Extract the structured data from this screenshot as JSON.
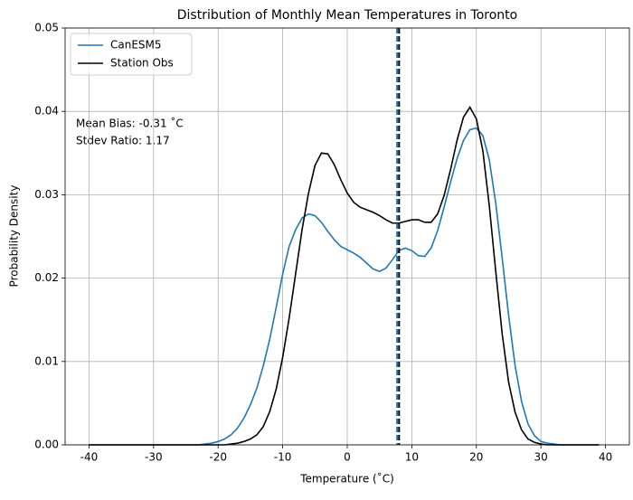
{
  "chart_data": {
    "type": "line",
    "title": "Distribution of Monthly Mean Temperatures in Toronto",
    "xlabel": "Temperature (˚C)",
    "ylabel": "Probability Density",
    "annotations": [
      "Mean Bias: -0.31 ˚C",
      "Stdev Ratio: 1.17"
    ],
    "x": [
      -40,
      -39,
      -38,
      -37,
      -36,
      -35,
      -34,
      -33,
      -32,
      -31,
      -30,
      -29,
      -28,
      -27,
      -26,
      -25,
      -24,
      -23,
      -22,
      -21,
      -20,
      -19,
      -18,
      -17,
      -16,
      -15,
      -14,
      -13,
      -12,
      -11,
      -10,
      -9,
      -8,
      -7,
      -6,
      -5,
      -4,
      -3,
      -2,
      -1,
      0,
      1,
      2,
      3,
      4,
      5,
      6,
      7,
      8,
      9,
      10,
      11,
      12,
      13,
      14,
      15,
      16,
      17,
      18,
      19,
      20,
      21,
      22,
      23,
      24,
      25,
      26,
      27,
      28,
      29,
      30,
      31,
      32,
      33,
      34,
      35,
      36,
      37,
      38,
      39
    ],
    "series": [
      {
        "name": "CanESM5",
        "color": "#1f77b4",
        "values": [
          0,
          0,
          0,
          0,
          0,
          0,
          0,
          0,
          0,
          0,
          0,
          0,
          0,
          0,
          0,
          0,
          0,
          0,
          0.0001,
          0.0002,
          0.0004,
          0.0007,
          0.0012,
          0.002,
          0.0032,
          0.0048,
          0.0068,
          0.0095,
          0.0127,
          0.0165,
          0.0205,
          0.0238,
          0.0258,
          0.0272,
          0.0277,
          0.0275,
          0.0267,
          0.0256,
          0.0246,
          0.0238,
          0.0234,
          0.023,
          0.0225,
          0.0218,
          0.0211,
          0.0208,
          0.0212,
          0.0222,
          0.0233,
          0.0236,
          0.0233,
          0.0227,
          0.0226,
          0.0236,
          0.0257,
          0.0285,
          0.0315,
          0.0343,
          0.0365,
          0.0378,
          0.038,
          0.0371,
          0.0342,
          0.029,
          0.0224,
          0.0155,
          0.0095,
          0.0052,
          0.0025,
          0.0011,
          0.0004,
          0.0002,
          0.0001,
          0,
          0,
          0,
          0,
          0,
          0,
          0
        ]
      },
      {
        "name": "Station Obs",
        "color": "#000000",
        "values": [
          0,
          0,
          0,
          0,
          0,
          0,
          0,
          0,
          0,
          0,
          0,
          0,
          0,
          0,
          0,
          0,
          0,
          0,
          0,
          0,
          0,
          0,
          0.0001,
          0.0002,
          0.0004,
          0.0007,
          0.0012,
          0.0022,
          0.004,
          0.0067,
          0.0105,
          0.0152,
          0.0205,
          0.0258,
          0.0302,
          0.0335,
          0.035,
          0.0349,
          0.0336,
          0.0318,
          0.0302,
          0.0291,
          0.0285,
          0.0282,
          0.0279,
          0.0275,
          0.027,
          0.0266,
          0.0266,
          0.0268,
          0.027,
          0.027,
          0.0267,
          0.0267,
          0.0277,
          0.0299,
          0.033,
          0.0365,
          0.0393,
          0.0405,
          0.0391,
          0.0353,
          0.0287,
          0.0208,
          0.0133,
          0.0075,
          0.0039,
          0.0018,
          0.0007,
          0.0003,
          0.0001,
          0,
          0,
          0,
          0,
          0,
          0,
          0,
          0,
          0
        ]
      }
    ],
    "vlines": [
      {
        "value": 7.72,
        "color": "#1f77b4"
      },
      {
        "value": 8.03,
        "color": "#000000"
      }
    ],
    "xlim": [
      -43.7,
      43.7
    ],
    "ylim": [
      0,
      0.05
    ],
    "xticks": [
      -40,
      -30,
      -20,
      -10,
      0,
      10,
      20,
      30,
      40
    ],
    "yticks": [
      {
        "value": 0,
        "label": "0.00"
      },
      {
        "value": 0.01,
        "label": "0.01"
      },
      {
        "value": 0.02,
        "label": "0.02"
      },
      {
        "value": 0.03,
        "label": "0.03"
      },
      {
        "value": 0.04,
        "label": "0.04"
      },
      {
        "value": 0.05,
        "label": "0.05"
      }
    ],
    "grid": true,
    "legend": "upper-left"
  }
}
